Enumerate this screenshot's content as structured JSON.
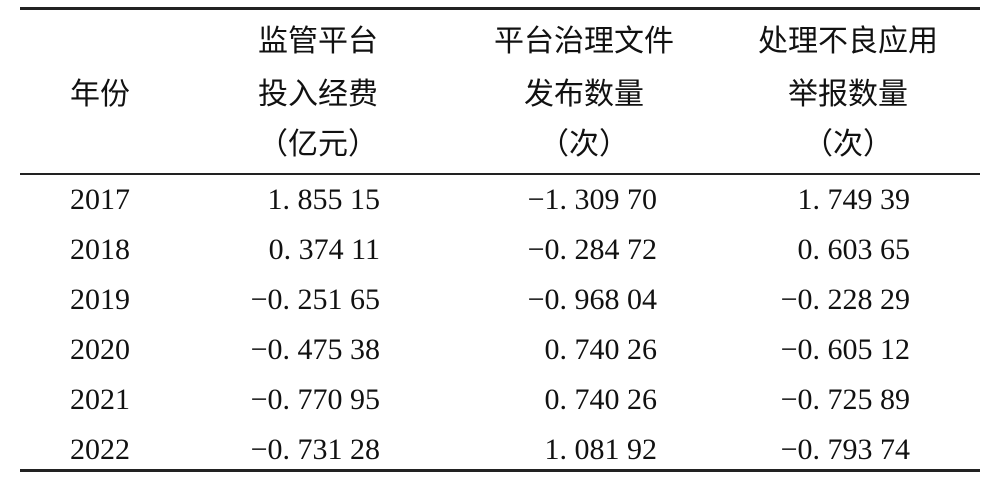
{
  "table": {
    "headers": [
      {
        "lines": [
          "年份"
        ]
      },
      {
        "lines": [
          "监管平台",
          "投入经费",
          "（亿元）"
        ]
      },
      {
        "lines": [
          "平台治理文件",
          "发布数量",
          "（次）"
        ]
      },
      {
        "lines": [
          "处理不良应用",
          "举报数量",
          "（次）"
        ]
      }
    ],
    "rows": [
      [
        "2017",
        "1. 855 15",
        "−1. 309 70",
        "1. 749 39"
      ],
      [
        "2018",
        "0. 374 11",
        "−0. 284 72",
        "0. 603 65"
      ],
      [
        "2019",
        "−0. 251 65",
        "−0. 968 04",
        "−0. 228 29"
      ],
      [
        "2020",
        "−0. 475 38",
        "0. 740 26",
        "−0. 605 12"
      ],
      [
        "2021",
        "−0. 770 95",
        "0. 740 26",
        "−0. 725 89"
      ],
      [
        "2022",
        "−0. 731 28",
        "1. 081 92",
        "−0. 793 74"
      ]
    ]
  }
}
